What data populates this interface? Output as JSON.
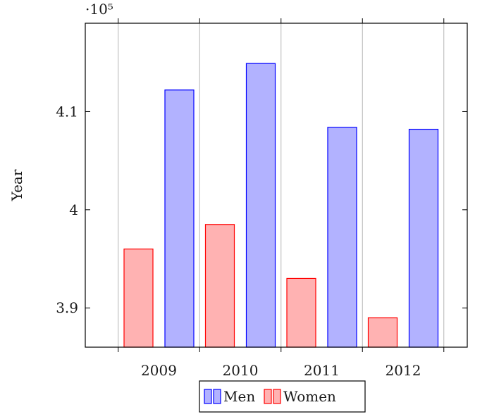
{
  "chart_data": {
    "type": "bar",
    "title": "",
    "xlabel": "",
    "ylabel": "Year",
    "y_multiplier": "·10⁵",
    "categories": [
      "2009",
      "2010",
      "2011",
      "2012"
    ],
    "ylim": [
      3.86,
      4.19
    ],
    "yticks": [
      3.9,
      4.0,
      4.1
    ],
    "ytick_labels": [
      "3.9",
      "4",
      "4.1"
    ],
    "grid": "vertical",
    "legend_position": "bottom-center",
    "series": [
      {
        "name": "Women",
        "values": [
          3.96,
          3.985,
          3.93,
          3.89
        ],
        "fill": "#ffb2b2",
        "stroke": "#ff0000"
      },
      {
        "name": "Men",
        "values": [
          4.122,
          4.149,
          4.084,
          4.082
        ],
        "fill": "#b2b2ff",
        "stroke": "#0000ff"
      }
    ],
    "legend": [
      {
        "name": "Men",
        "fill": "#b2b2ff",
        "stroke": "#0000ff"
      },
      {
        "name": "Women",
        "fill": "#ffb2b2",
        "stroke": "#ff0000"
      }
    ]
  }
}
